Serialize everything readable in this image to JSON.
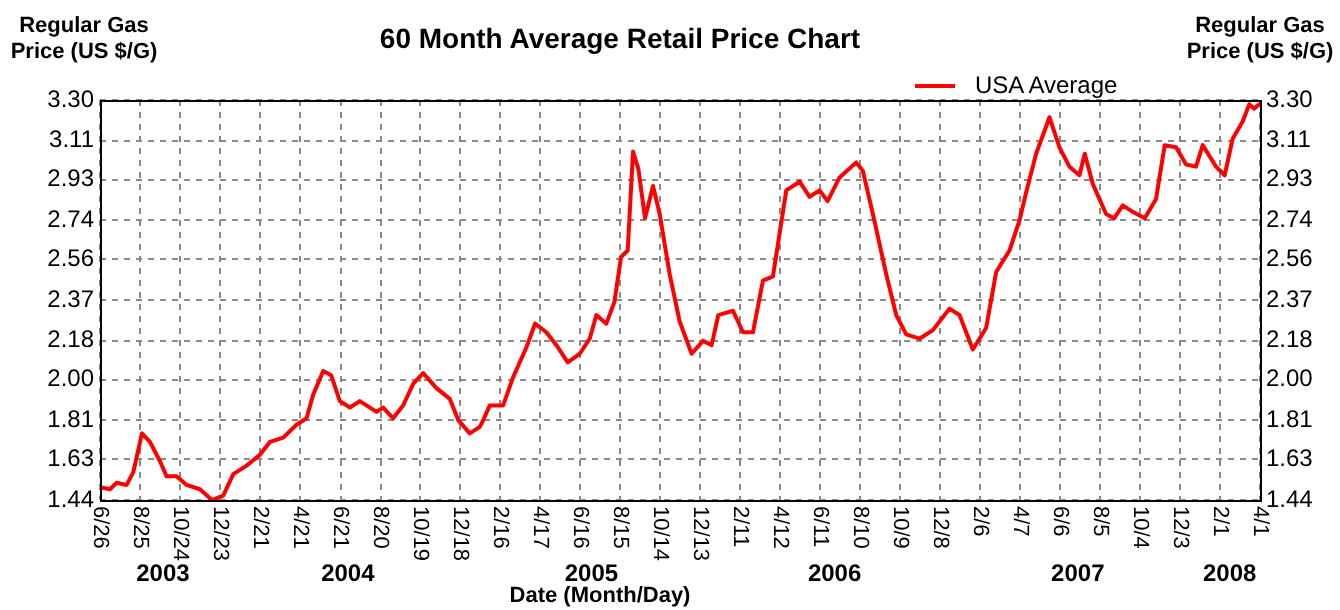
{
  "chart_data": {
    "type": "line",
    "title": "60 Month Average Retail Price Chart",
    "xlabel": "Date (Month/Day)",
    "ylabel": "Regular Gas Price (US $/G)",
    "y2label": "Regular Gas Price (US $/G)",
    "x": [
      "2003-06-26",
      "2003-07-11",
      "2003-07-21",
      "2003-08-05",
      "2003-08-15",
      "2003-08-28",
      "2003-09-09",
      "2003-09-24",
      "2003-10-04",
      "2003-10-19",
      "2003-11-03",
      "2003-11-23",
      "2003-12-11",
      "2003-12-28",
      "2004-01-12",
      "2004-02-01",
      "2004-02-21",
      "2004-03-07",
      "2004-03-27",
      "2004-04-16",
      "2004-05-01",
      "2004-05-11",
      "2004-05-26",
      "2004-06-07",
      "2004-06-20",
      "2004-07-05",
      "2004-07-20",
      "2004-08-14",
      "2004-08-24",
      "2004-09-08",
      "2004-09-23",
      "2004-10-08",
      "2004-10-23",
      "2004-11-12",
      "2004-12-02",
      "2004-12-15",
      "2005-01-01",
      "2005-01-16",
      "2005-01-21",
      "2005-01-31",
      "2005-02-20",
      "2005-03-07",
      "2005-03-27",
      "2005-04-09",
      "2005-04-26",
      "2005-05-11",
      "2005-05-28",
      "2005-06-15",
      "2005-06-30",
      "2005-07-10",
      "2005-07-25",
      "2005-08-06",
      "2005-08-16",
      "2005-08-26",
      "2005-09-03",
      "2005-09-11",
      "2005-09-21",
      "2005-10-03",
      "2005-10-13",
      "2005-10-28",
      "2005-11-12",
      "2005-11-30",
      "2005-12-17",
      "2005-12-30",
      "2006-01-09",
      "2006-01-31",
      "2006-02-15",
      "2006-03-02",
      "2006-03-17",
      "2006-04-01",
      "2006-04-21",
      "2006-05-11",
      "2006-05-26",
      "2006-06-10",
      "2006-06-22",
      "2006-07-10",
      "2006-08-04",
      "2006-08-14",
      "2006-08-29",
      "2006-09-18",
      "2006-10-03",
      "2006-10-18",
      "2006-11-07",
      "2006-11-27",
      "2006-12-12",
      "2006-12-22",
      "2007-01-06",
      "2007-01-26",
      "2007-02-15",
      "2007-03-02",
      "2007-03-22",
      "2007-04-06",
      "2007-04-16",
      "2007-05-01",
      "2007-05-21",
      "2007-06-05",
      "2007-06-20",
      "2007-07-05",
      "2007-07-13",
      "2007-07-25",
      "2007-08-14",
      "2007-08-26",
      "2007-09-08",
      "2007-09-23",
      "2007-10-11",
      "2007-10-28",
      "2007-11-10",
      "2007-11-27",
      "2007-12-12",
      "2007-12-27",
      "2008-01-06",
      "2008-01-26",
      "2008-02-08",
      "2008-02-20",
      "2008-03-06",
      "2008-03-16",
      "2008-03-23",
      "2008-03-31"
    ],
    "series": [
      {
        "name": "USA Average",
        "color": "#ff0000",
        "values": [
          1.5,
          1.49,
          1.52,
          1.51,
          1.57,
          1.75,
          1.71,
          1.62,
          1.55,
          1.55,
          1.51,
          1.49,
          1.44,
          1.46,
          1.56,
          1.6,
          1.65,
          1.71,
          1.73,
          1.79,
          1.82,
          1.93,
          2.04,
          2.02,
          1.9,
          1.87,
          1.9,
          1.85,
          1.87,
          1.82,
          1.88,
          1.98,
          2.03,
          1.96,
          1.91,
          1.81,
          1.75,
          1.78,
          1.81,
          1.88,
          1.88,
          2.01,
          2.15,
          2.26,
          2.22,
          2.16,
          2.08,
          2.12,
          2.19,
          2.3,
          2.26,
          2.36,
          2.57,
          2.6,
          3.06,
          2.98,
          2.75,
          2.9,
          2.77,
          2.49,
          2.27,
          2.12,
          2.18,
          2.16,
          2.3,
          2.32,
          2.22,
          2.22,
          2.46,
          2.48,
          2.88,
          2.92,
          2.85,
          2.88,
          2.83,
          2.94,
          3.01,
          2.97,
          2.77,
          2.49,
          2.3,
          2.21,
          2.19,
          2.23,
          2.29,
          2.33,
          2.3,
          2.14,
          2.24,
          2.5,
          2.6,
          2.74,
          2.87,
          3.05,
          3.22,
          3.08,
          2.99,
          2.95,
          3.05,
          2.91,
          2.77,
          2.75,
          2.81,
          2.78,
          2.75,
          2.84,
          3.09,
          3.08,
          3.0,
          2.99,
          3.09,
          2.99,
          2.95,
          3.12,
          3.2,
          3.28,
          3.26,
          3.28
        ]
      }
    ],
    "xlim": [
      "2003-06-26",
      "2008-04-01"
    ],
    "xticks": [
      {
        "value": "2003-06-26",
        "label": "6/26"
      },
      {
        "value": "2003-08-25",
        "label": "8/25"
      },
      {
        "value": "2003-10-24",
        "label": "10/24"
      },
      {
        "value": "2003-12-23",
        "label": "12/23"
      },
      {
        "value": "2004-02-21",
        "label": "2/21"
      },
      {
        "value": "2004-04-21",
        "label": "4/21"
      },
      {
        "value": "2004-06-21",
        "label": "6/21"
      },
      {
        "value": "2004-08-20",
        "label": "8/20"
      },
      {
        "value": "2004-10-19",
        "label": "10/19"
      },
      {
        "value": "2004-12-18",
        "label": "12/18"
      },
      {
        "value": "2005-02-16",
        "label": "2/16"
      },
      {
        "value": "2005-04-17",
        "label": "4/17"
      },
      {
        "value": "2005-06-16",
        "label": "6/16"
      },
      {
        "value": "2005-08-15",
        "label": "8/15"
      },
      {
        "value": "2005-10-14",
        "label": "10/14"
      },
      {
        "value": "2005-12-13",
        "label": "12/13"
      },
      {
        "value": "2006-02-11",
        "label": "2/11"
      },
      {
        "value": "2006-04-12",
        "label": "4/12"
      },
      {
        "value": "2006-06-11",
        "label": "6/11"
      },
      {
        "value": "2006-08-10",
        "label": "8/10"
      },
      {
        "value": "2006-10-09",
        "label": "10/9"
      },
      {
        "value": "2006-12-08",
        "label": "12/8"
      },
      {
        "value": "2007-02-06",
        "label": "2/6"
      },
      {
        "value": "2007-04-07",
        "label": "4/7"
      },
      {
        "value": "2007-06-06",
        "label": "6/6"
      },
      {
        "value": "2007-08-05",
        "label": "8/5"
      },
      {
        "value": "2007-10-04",
        "label": "10/4"
      },
      {
        "value": "2007-12-03",
        "label": "12/3"
      },
      {
        "value": "2008-02-01",
        "label": "2/1"
      },
      {
        "value": "2008-04-01",
        "label": "4/1"
      }
    ],
    "ylim": [
      1.44,
      3.3
    ],
    "yticks": [
      1.44,
      1.63,
      1.81,
      {
        "value": 2,
        "label": "2.00"
      },
      2.18,
      2.37,
      2.56,
      2.74,
      2.93,
      3.11,
      {
        "value": 3.3,
        "label": "3.30"
      }
    ],
    "y2lim": [
      1.44,
      3.3
    ],
    "y2ticks": [
      1.44,
      1.63,
      1.81,
      {
        "value": 2,
        "label": "2.00"
      },
      2.18,
      2.37,
      2.56,
      2.74,
      2.93,
      3.11,
      {
        "value": 3.3,
        "label": "3.30"
      }
    ],
    "annotations": [
      "2003",
      "2004",
      "2005",
      "2006",
      "2007",
      "2008"
    ],
    "grid": true,
    "legend": "top right",
    "marker": "none",
    "line_style": "solid"
  }
}
